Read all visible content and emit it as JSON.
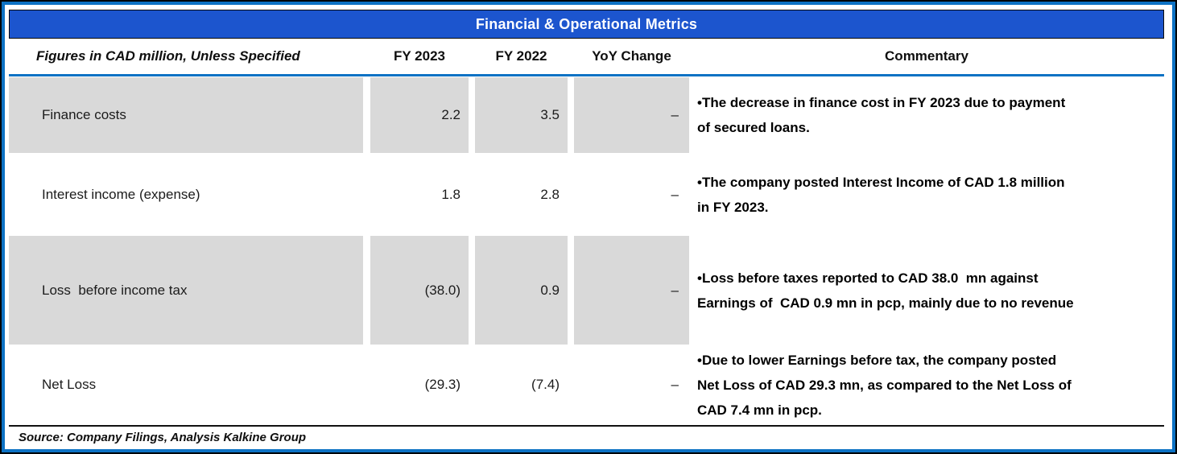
{
  "title": "Financial & Operational Metrics",
  "header": {
    "label": "Figures in CAD million, Unless Specified",
    "col_fy2023": "FY 2023",
    "col_fy2022": "FY 2022",
    "col_yoy": "YoY Change",
    "col_commentary": "Commentary"
  },
  "rows": [
    {
      "metric": "Finance costs",
      "fy2023": "2.2",
      "fy2022": "3.5",
      "yoy": "–",
      "commentary": "•The decrease in finance cost in FY 2023 due to payment\nof secured loans."
    },
    {
      "metric": "Interest income (expense)",
      "fy2023": "1.8",
      "fy2022": "2.8",
      "yoy": "–",
      "commentary": "•The company posted Interest Income of CAD 1.8 million\nin FY 2023."
    },
    {
      "metric": "Loss  before income tax",
      "fy2023": "(38.0)",
      "fy2022": "0.9",
      "yoy": "–",
      "commentary": "•Loss before taxes reported to CAD 38.0  mn against\nEarnings of  CAD 0.9 mn in pcp, mainly due to no revenue"
    },
    {
      "metric": "Net Loss",
      "fy2023": "(29.3)",
      "fy2022": "(7.4)",
      "yoy": "–",
      "commentary": "•Due to lower Earnings before tax, the company posted\nNet Loss of CAD 29.3 mn, as compared to the Net Loss of\nCAD 7.4 mn in pcp."
    }
  ],
  "source": "Source: Company Filings, Analysis Kalkine Group",
  "colors": {
    "title_bar_bg": "#1c55ce",
    "title_text": "#ffffff",
    "row_shade_gray": "#d9d9d9",
    "divider_blue": "#0d72c4",
    "outer_border_black": "#000000",
    "text_black": "#1b1b1b"
  }
}
